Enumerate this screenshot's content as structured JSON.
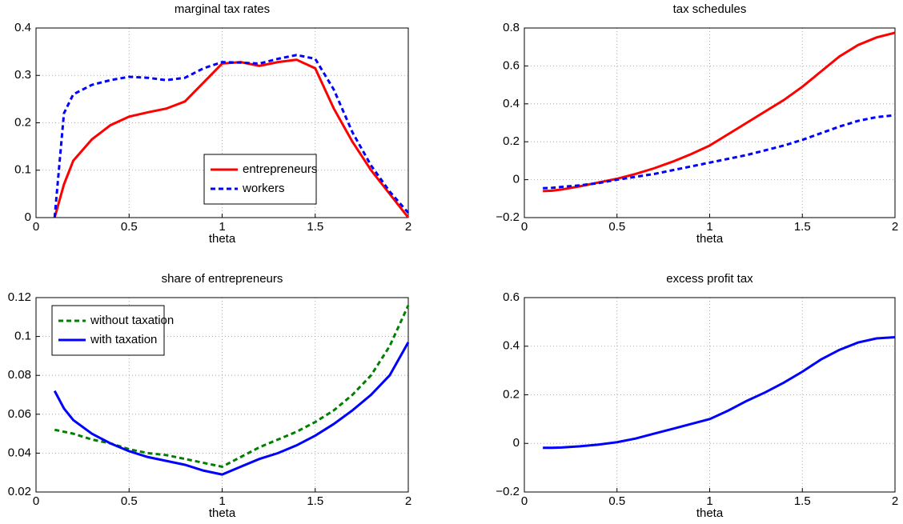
{
  "chart_data": [
    {
      "type": "line",
      "title": "marginal tax rates",
      "xlabel": "theta",
      "x": [
        0.1,
        0.15,
        0.2,
        0.3,
        0.4,
        0.5,
        0.6,
        0.7,
        0.8,
        0.9,
        1.0,
        1.1,
        1.2,
        1.3,
        1.4,
        1.5,
        1.6,
        1.7,
        1.8,
        1.9,
        2.0
      ],
      "series": [
        {
          "name": "entrepreneurs",
          "color": "#ff0000",
          "linestyle": "solid",
          "values": [
            0,
            0.07,
            0.12,
            0.165,
            0.195,
            0.213,
            0.222,
            0.23,
            0.245,
            0.285,
            0.325,
            0.328,
            0.32,
            0.328,
            0.333,
            0.315,
            0.23,
            0.16,
            0.1,
            0.05,
            0
          ]
        },
        {
          "name": "workers",
          "color": "#0000ff",
          "linestyle": "dashed",
          "values": [
            0,
            0.22,
            0.26,
            0.28,
            0.29,
            0.297,
            0.295,
            0.29,
            0.295,
            0.315,
            0.328,
            0.327,
            0.325,
            0.335,
            0.343,
            0.335,
            0.27,
            0.18,
            0.11,
            0.055,
            0.01
          ]
        }
      ],
      "xlim": [
        0,
        2
      ],
      "xticks": [
        0,
        0.5,
        1,
        1.5,
        2
      ],
      "ylim": [
        0,
        0.4
      ],
      "yticks": [
        0,
        0.1,
        0.2,
        0.3,
        0.4
      ],
      "grid": true,
      "legend": "lower right"
    },
    {
      "type": "line",
      "title": "tax schedules",
      "xlabel": "theta",
      "x": [
        0.1,
        0.15,
        0.2,
        0.3,
        0.4,
        0.5,
        0.6,
        0.7,
        0.8,
        0.9,
        1.0,
        1.1,
        1.2,
        1.3,
        1.4,
        1.5,
        1.6,
        1.7,
        1.8,
        1.9,
        2.0
      ],
      "series": [
        {
          "color": "#ff0000",
          "linestyle": "solid",
          "values": [
            -0.06,
            -0.058,
            -0.052,
            -0.035,
            -0.015,
            0.005,
            0.03,
            0.06,
            0.095,
            0.135,
            0.18,
            0.24,
            0.3,
            0.36,
            0.42,
            0.49,
            0.57,
            0.65,
            0.71,
            0.75,
            0.775
          ]
        },
        {
          "color": "#0000ff",
          "linestyle": "dashed",
          "values": [
            -0.045,
            -0.043,
            -0.038,
            -0.03,
            -0.018,
            0,
            0.015,
            0.03,
            0.05,
            0.07,
            0.09,
            0.11,
            0.13,
            0.155,
            0.18,
            0.21,
            0.245,
            0.28,
            0.31,
            0.33,
            0.34
          ]
        }
      ],
      "xlim": [
        0,
        2
      ],
      "xticks": [
        0,
        0.5,
        1,
        1.5,
        2
      ],
      "ylim": [
        -0.2,
        0.8
      ],
      "yticks": [
        {
          "value": -0.2,
          "label": "−0.2"
        },
        0,
        0.2,
        0.4,
        0.6,
        0.8
      ],
      "grid": true
    },
    {
      "type": "line",
      "title": "share of entrepreneurs",
      "xlabel": "theta",
      "x": [
        0.1,
        0.15,
        0.2,
        0.3,
        0.4,
        0.5,
        0.6,
        0.7,
        0.8,
        0.9,
        1.0,
        1.1,
        1.2,
        1.3,
        1.4,
        1.5,
        1.6,
        1.7,
        1.8,
        1.9,
        2.0
      ],
      "series": [
        {
          "name": "without taxation",
          "color": "#008000",
          "linestyle": "dashed",
          "values": [
            0.052,
            0.051,
            0.05,
            0.047,
            0.045,
            0.042,
            0.04,
            0.039,
            0.037,
            0.035,
            0.033,
            0.038,
            0.043,
            0.047,
            0.051,
            0.056,
            0.062,
            0.07,
            0.08,
            0.095,
            0.116
          ]
        },
        {
          "name": "with taxation",
          "color": "#0000ff",
          "linestyle": "solid",
          "values": [
            0.072,
            0.063,
            0.057,
            0.05,
            0.045,
            0.041,
            0.038,
            0.036,
            0.034,
            0.031,
            0.029,
            0.033,
            0.037,
            0.04,
            0.044,
            0.049,
            0.055,
            0.062,
            0.07,
            0.08,
            0.097
          ]
        }
      ],
      "xlim": [
        0,
        2
      ],
      "xticks": [
        0,
        0.5,
        1,
        1.5,
        2
      ],
      "ylim": [
        0.02,
        0.12
      ],
      "yticks": [
        0.02,
        0.04,
        0.06,
        0.08,
        0.1,
        0.12
      ],
      "grid": true,
      "legend": "upper left"
    },
    {
      "type": "line",
      "title": "excess profit tax",
      "xlabel": "theta",
      "x": [
        0.1,
        0.15,
        0.2,
        0.3,
        0.4,
        0.5,
        0.6,
        0.7,
        0.8,
        0.9,
        1.0,
        1.1,
        1.2,
        1.3,
        1.4,
        1.5,
        1.6,
        1.7,
        1.8,
        1.9,
        2.0
      ],
      "series": [
        {
          "color": "#0000ff",
          "linestyle": "solid",
          "values": [
            -0.018,
            -0.018,
            -0.017,
            -0.012,
            -0.005,
            0.005,
            0.02,
            0.04,
            0.06,
            0.08,
            0.1,
            0.135,
            0.175,
            0.21,
            0.25,
            0.295,
            0.345,
            0.385,
            0.415,
            0.432,
            0.437
          ]
        }
      ],
      "xlim": [
        0,
        2
      ],
      "xticks": [
        0,
        0.5,
        1,
        1.5,
        2
      ],
      "ylim": [
        -0.2,
        0.6
      ],
      "yticks": [
        {
          "value": -0.2,
          "label": "−0.2"
        },
        0,
        0.2,
        0.4,
        0.6
      ],
      "grid": true
    }
  ]
}
